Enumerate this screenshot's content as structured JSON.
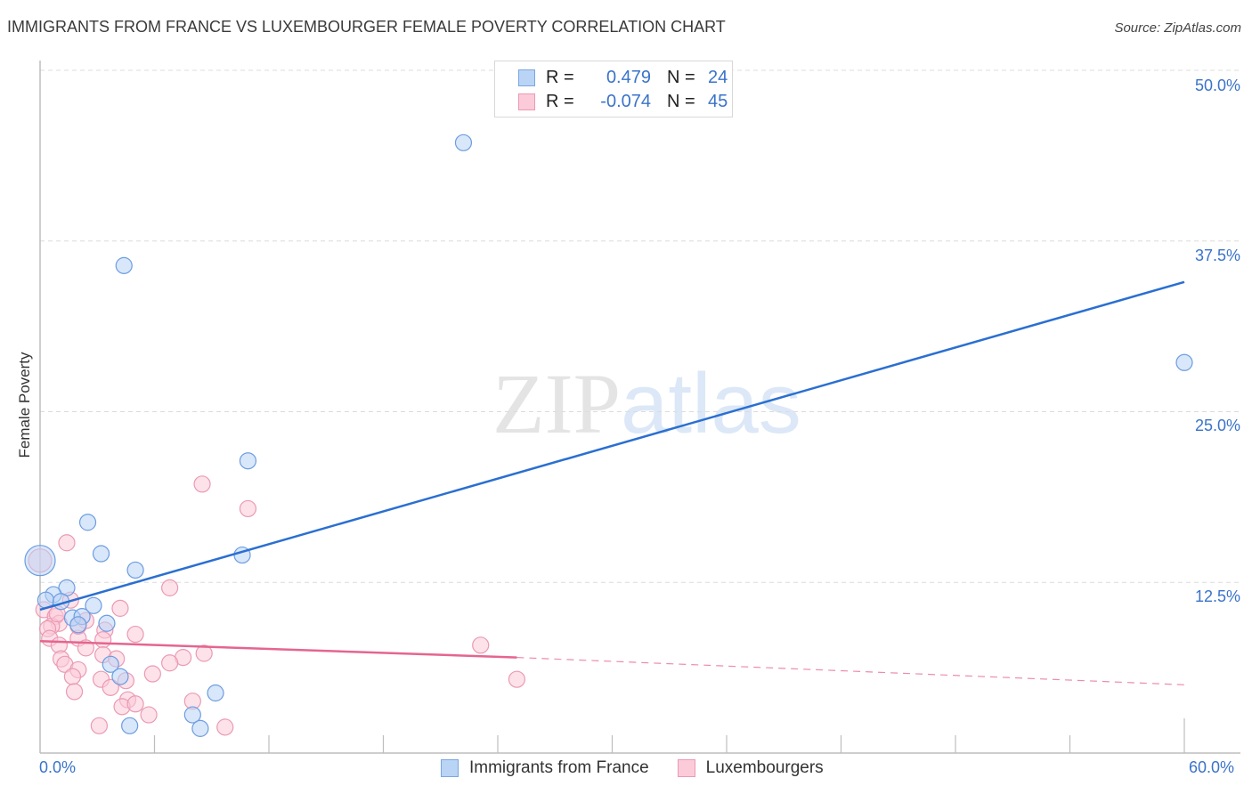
{
  "header": {
    "title": "IMMIGRANTS FROM FRANCE VS LUXEMBOURGER FEMALE POVERTY CORRELATION CHART",
    "source": "Source: ZipAtlas.com"
  },
  "watermark": {
    "zip": "ZIP",
    "atlas": "atlas"
  },
  "legend_top": {
    "rows": [
      {
        "r_label": "R =",
        "r_value": "0.479",
        "n_label": "N =",
        "n_value": "24",
        "color": "#b9d4f5",
        "border": "#7aa6e0"
      },
      {
        "r_label": "R =",
        "r_value": "-0.074",
        "n_label": "N =",
        "n_value": "45",
        "color": "#fccbd9",
        "border": "#eb9ab3"
      }
    ]
  },
  "legend_bottom": {
    "items": [
      {
        "label": "Immigrants from France",
        "color": "#b9d4f5",
        "border": "#7aa6e0"
      },
      {
        "label": "Luxembourgers",
        "color": "#fccbd9",
        "border": "#eb9ab3"
      }
    ]
  },
  "axes": {
    "ylabel": "Female Poverty",
    "yticks": [
      "50.0%",
      "37.5%",
      "25.0%",
      "12.5%"
    ],
    "xticks": [
      "0.0%",
      "60.0%"
    ]
  },
  "colors": {
    "blue_fill": "#b9d4f5",
    "blue_stroke": "#6c9de0",
    "blue_line": "#2a6fd1",
    "pink_fill": "#fccbd9",
    "pink_stroke": "#eb9ab3",
    "pink_line": "#e5658f",
    "grid": "#dcdcdc",
    "axis": "#bdbdbd",
    "tick_text": "#3a73c9"
  },
  "chart_data": {
    "type": "scatter",
    "title": "IMMIGRANTS FROM FRANCE VS LUXEMBOURGER FEMALE POVERTY CORRELATION CHART",
    "xlabel": "",
    "ylabel": "Female Poverty",
    "xlim": [
      0,
      60
    ],
    "ylim": [
      0,
      52
    ],
    "x_ticks": [
      "0.0%",
      "60.0%"
    ],
    "y_ticks": [
      "12.5%",
      "25.0%",
      "37.5%",
      "50.0%"
    ],
    "grid": true,
    "legend_position": "top-center and bottom",
    "series": [
      {
        "name": "Immigrants from France",
        "R": 0.479,
        "N": 24,
        "trend": {
          "x": [
            0,
            60
          ],
          "y": [
            10.5,
            34.5
          ],
          "style": "solid"
        },
        "points": [
          [
            22.2,
            44.7
          ],
          [
            4.4,
            35.7
          ],
          [
            60.0,
            28.6
          ],
          [
            10.9,
            21.4
          ],
          [
            2.5,
            16.9
          ],
          [
            3.2,
            14.6
          ],
          [
            0.0,
            14.1
          ],
          [
            10.6,
            14.5
          ],
          [
            5.0,
            13.4
          ],
          [
            1.4,
            12.1
          ],
          [
            0.7,
            11.6
          ],
          [
            0.3,
            11.2
          ],
          [
            1.1,
            11.1
          ],
          [
            2.8,
            10.8
          ],
          [
            1.7,
            9.9
          ],
          [
            2.2,
            10.0
          ],
          [
            2.0,
            9.4
          ],
          [
            3.5,
            9.5
          ],
          [
            3.7,
            6.5
          ],
          [
            4.2,
            5.6
          ],
          [
            9.2,
            4.4
          ],
          [
            8.0,
            2.8
          ],
          [
            4.7,
            2.0
          ],
          [
            8.4,
            1.8
          ]
        ]
      },
      {
        "name": "Luxembourgers",
        "R": -0.074,
        "N": 45,
        "trend": {
          "x": [
            0,
            25
          ],
          "y": [
            8.2,
            7.0
          ],
          "style": "solid",
          "extension": {
            "x": [
              25,
              60
            ],
            "y": [
              7.0,
              5.0
            ],
            "style": "dashed"
          }
        },
        "points": [
          [
            0.0,
            14.1
          ],
          [
            8.5,
            19.7
          ],
          [
            10.9,
            17.9
          ],
          [
            1.4,
            15.4
          ],
          [
            6.8,
            12.1
          ],
          [
            1.6,
            11.2
          ],
          [
            0.2,
            10.5
          ],
          [
            0.8,
            10.0
          ],
          [
            4.2,
            10.6
          ],
          [
            2.4,
            9.7
          ],
          [
            1.0,
            9.5
          ],
          [
            0.6,
            9.3
          ],
          [
            0.4,
            9.1
          ],
          [
            3.4,
            9.0
          ],
          [
            5.0,
            8.7
          ],
          [
            2.0,
            8.4
          ],
          [
            3.3,
            8.3
          ],
          [
            0.5,
            8.4
          ],
          [
            1.0,
            7.9
          ],
          [
            2.4,
            7.7
          ],
          [
            3.3,
            7.2
          ],
          [
            8.6,
            7.3
          ],
          [
            7.5,
            7.0
          ],
          [
            23.1,
            7.9
          ],
          [
            1.1,
            6.9
          ],
          [
            4.0,
            6.9
          ],
          [
            6.8,
            6.6
          ],
          [
            1.3,
            6.5
          ],
          [
            2.0,
            6.1
          ],
          [
            5.9,
            5.8
          ],
          [
            1.7,
            5.6
          ],
          [
            3.2,
            5.4
          ],
          [
            4.5,
            5.3
          ],
          [
            25.0,
            5.4
          ],
          [
            3.7,
            4.8
          ],
          [
            1.8,
            4.5
          ],
          [
            8.0,
            3.8
          ],
          [
            4.6,
            3.9
          ],
          [
            4.3,
            3.4
          ],
          [
            5.0,
            3.6
          ],
          [
            5.7,
            2.8
          ],
          [
            3.1,
            2.0
          ],
          [
            9.7,
            1.9
          ],
          [
            2.0,
            9.3
          ],
          [
            0.9,
            10.2
          ]
        ]
      }
    ]
  }
}
